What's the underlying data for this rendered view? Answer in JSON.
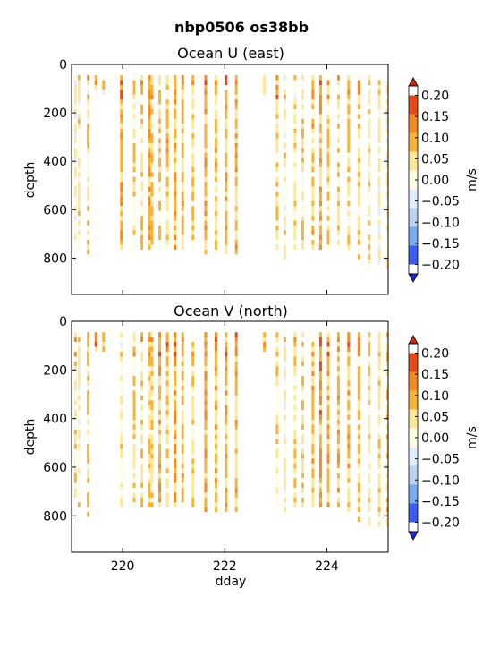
{
  "figure": {
    "suptitle": "nbp0506 os38bb"
  },
  "colorbar": {
    "label": "m/s",
    "ticks": [
      "0.20",
      "0.15",
      "0.10",
      "0.05",
      "0.00",
      "−0.05",
      "−0.10",
      "−0.15",
      "−0.20"
    ],
    "colors": [
      "#e34a1a",
      "#f18c22",
      "#f5b339",
      "#fce898",
      "#fefce3",
      "#e3eefb",
      "#b9d3f5",
      "#7aaaf0",
      "#3b5cf0"
    ],
    "over_color": "#c72812",
    "under_color": "#1a2ad9"
  },
  "chart_data": [
    {
      "type": "heatmap",
      "title": "Ocean U (east)",
      "xlabel": "",
      "ylabel": "depth",
      "xlim": [
        219.0,
        225.2
      ],
      "ylim": [
        950,
        0
      ],
      "xticks": [
        220,
        222,
        224
      ],
      "xticklabels": [],
      "yticks": [
        0,
        200,
        400,
        600,
        800
      ],
      "yticklabels": [
        "0",
        "200",
        "400",
        "600",
        "800"
      ],
      "colorbar_range": [
        -0.2,
        0.2
      ],
      "profiles": [
        {
          "x": 219.05,
          "bottom": 720,
          "mean": -0.02
        },
        {
          "x": 219.12,
          "bottom": 750,
          "mean": 0.0
        },
        {
          "x": 219.3,
          "bottom": 790,
          "mean": 0.01
        },
        {
          "x": 219.45,
          "bottom": 120,
          "mean": 0.02
        },
        {
          "x": 219.6,
          "bottom": 110,
          "mean": 0.01
        },
        {
          "x": 219.95,
          "bottom": 760,
          "mean": 0.07
        },
        {
          "x": 220.2,
          "bottom": 760,
          "mean": 0.02
        },
        {
          "x": 220.35,
          "bottom": 760,
          "mean": 0.03
        },
        {
          "x": 220.5,
          "bottom": 760,
          "mean": 0.07
        },
        {
          "x": 220.55,
          "bottom": 760,
          "mean": 0.04
        },
        {
          "x": 220.7,
          "bottom": 760,
          "mean": 0.02
        },
        {
          "x": 220.85,
          "bottom": 760,
          "mean": 0.05
        },
        {
          "x": 221.0,
          "bottom": 760,
          "mean": 0.06
        },
        {
          "x": 221.15,
          "bottom": 760,
          "mean": 0.05
        },
        {
          "x": 221.35,
          "bottom": 760,
          "mean": 0.04
        },
        {
          "x": 221.6,
          "bottom": 780,
          "mean": 0.06
        },
        {
          "x": 221.8,
          "bottom": 780,
          "mean": 0.05
        },
        {
          "x": 222.0,
          "bottom": 780,
          "mean": 0.06
        },
        {
          "x": 222.2,
          "bottom": 780,
          "mean": 0.07
        },
        {
          "x": 222.75,
          "bottom": 110,
          "mean": 0.0
        },
        {
          "x": 223.0,
          "bottom": 760,
          "mean": 0.02
        },
        {
          "x": 223.15,
          "bottom": 800,
          "mean": 0.0
        },
        {
          "x": 223.35,
          "bottom": 760,
          "mean": 0.01
        },
        {
          "x": 223.5,
          "bottom": 760,
          "mean": 0.02
        },
        {
          "x": 223.7,
          "bottom": 760,
          "mean": 0.05
        },
        {
          "x": 223.85,
          "bottom": 760,
          "mean": 0.07
        },
        {
          "x": 224.0,
          "bottom": 760,
          "mean": 0.03
        },
        {
          "x": 224.2,
          "bottom": 760,
          "mean": 0.02
        },
        {
          "x": 224.4,
          "bottom": 780,
          "mean": 0.04
        },
        {
          "x": 224.6,
          "bottom": 820,
          "mean": 0.02
        },
        {
          "x": 224.8,
          "bottom": 840,
          "mean": 0.01
        },
        {
          "x": 225.0,
          "bottom": 830,
          "mean": -0.01
        },
        {
          "x": 225.15,
          "bottom": 830,
          "mean": -0.02
        }
      ]
    },
    {
      "type": "heatmap",
      "title": "Ocean V (north)",
      "xlabel": "dday",
      "ylabel": "depth",
      "xlim": [
        219.0,
        225.2
      ],
      "ylim": [
        950,
        0
      ],
      "xticks": [
        220,
        222,
        224
      ],
      "xticklabels": [
        "220",
        "222",
        "224"
      ],
      "yticks": [
        0,
        200,
        400,
        600,
        800
      ],
      "yticklabels": [
        "0",
        "200",
        "400",
        "600",
        "800"
      ],
      "colorbar_range": [
        -0.2,
        0.2
      ],
      "profiles": [
        {
          "x": 219.05,
          "bottom": 720,
          "mean": 0.01
        },
        {
          "x": 219.12,
          "bottom": 750,
          "mean": 0.0
        },
        {
          "x": 219.3,
          "bottom": 790,
          "mean": 0.02
        },
        {
          "x": 219.45,
          "bottom": 120,
          "mean": 0.12
        },
        {
          "x": 219.6,
          "bottom": 110,
          "mean": 0.03
        },
        {
          "x": 219.95,
          "bottom": 760,
          "mean": 0.01
        },
        {
          "x": 220.2,
          "bottom": 760,
          "mean": 0.03
        },
        {
          "x": 220.35,
          "bottom": 760,
          "mean": 0.02
        },
        {
          "x": 220.5,
          "bottom": 760,
          "mean": 0.04
        },
        {
          "x": 220.55,
          "bottom": 760,
          "mean": 0.03
        },
        {
          "x": 220.7,
          "bottom": 760,
          "mean": 0.06
        },
        {
          "x": 220.85,
          "bottom": 760,
          "mean": 0.04
        },
        {
          "x": 221.0,
          "bottom": 760,
          "mean": 0.07
        },
        {
          "x": 221.15,
          "bottom": 760,
          "mean": 0.05
        },
        {
          "x": 221.35,
          "bottom": 760,
          "mean": 0.03
        },
        {
          "x": 221.6,
          "bottom": 780,
          "mean": 0.08
        },
        {
          "x": 221.8,
          "bottom": 780,
          "mean": 0.06
        },
        {
          "x": 222.0,
          "bottom": 780,
          "mean": 0.07
        },
        {
          "x": 222.2,
          "bottom": 780,
          "mean": 0.06
        },
        {
          "x": 222.75,
          "bottom": 110,
          "mean": 0.09
        },
        {
          "x": 223.0,
          "bottom": 760,
          "mean": 0.01
        },
        {
          "x": 223.15,
          "bottom": 800,
          "mean": -0.02
        },
        {
          "x": 223.35,
          "bottom": 760,
          "mean": 0.02
        },
        {
          "x": 223.5,
          "bottom": 760,
          "mean": 0.03
        },
        {
          "x": 223.7,
          "bottom": 760,
          "mean": 0.06
        },
        {
          "x": 223.85,
          "bottom": 760,
          "mean": 0.1
        },
        {
          "x": 224.0,
          "bottom": 760,
          "mean": 0.08
        },
        {
          "x": 224.2,
          "bottom": 760,
          "mean": 0.05
        },
        {
          "x": 224.4,
          "bottom": 780,
          "mean": 0.05
        },
        {
          "x": 224.6,
          "bottom": 820,
          "mean": 0.04
        },
        {
          "x": 224.8,
          "bottom": 840,
          "mean": 0.03
        },
        {
          "x": 225.0,
          "bottom": 830,
          "mean": 0.02
        },
        {
          "x": 225.15,
          "bottom": 830,
          "mean": 0.03
        }
      ]
    }
  ]
}
